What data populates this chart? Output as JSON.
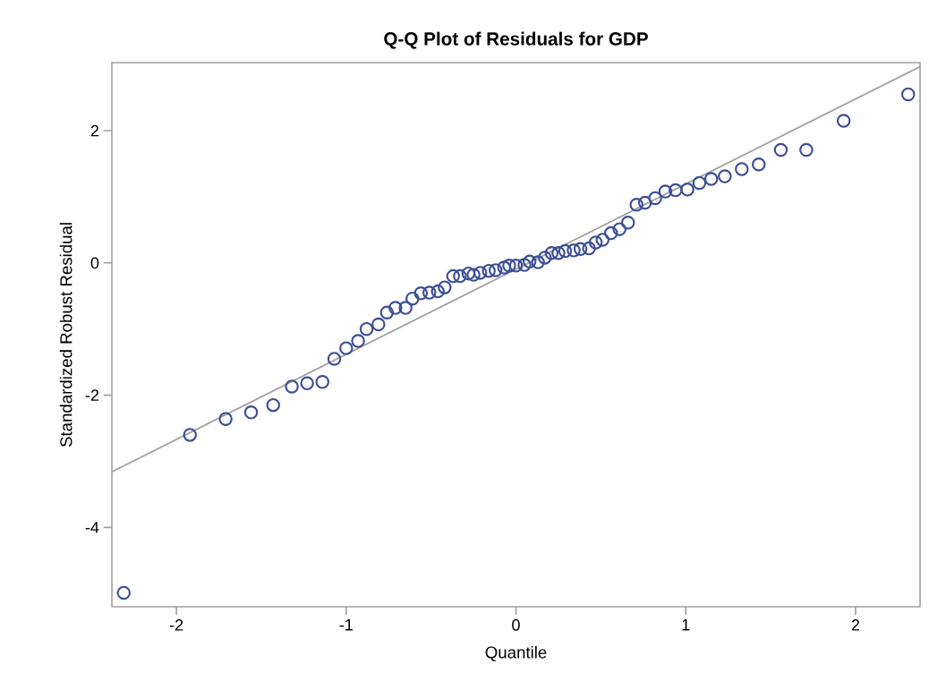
{
  "chart_data": {
    "type": "scatter",
    "title": "Q-Q Plot of Residuals for GDP",
    "xlabel": "Quantile",
    "ylabel": "Standardized Robust Residual",
    "xlim": [
      -2.38,
      2.38
    ],
    "ylim": [
      -5.2,
      3.03
    ],
    "xticks": [
      -2,
      -1,
      0,
      1,
      2
    ],
    "yticks": [
      -4,
      -2,
      0,
      2
    ],
    "series": [
      {
        "marker": "circle",
        "color": "#3c4e96",
        "x": [
          -2.31,
          -1.92,
          -1.71,
          -1.56,
          -1.43,
          -1.32,
          -1.23,
          -1.14,
          -1.07,
          -1.0,
          -0.93,
          -0.88,
          -0.81,
          -0.76,
          -0.71,
          -0.65,
          -0.61,
          -0.56,
          -0.51,
          -0.46,
          -0.42,
          -0.37,
          -0.33,
          -0.28,
          -0.25,
          -0.21,
          -0.16,
          -0.12,
          -0.07,
          -0.04,
          0.0,
          0.05,
          0.08,
          0.13,
          0.17,
          0.21,
          0.25,
          0.29,
          0.34,
          0.38,
          0.43,
          0.47,
          0.51,
          0.56,
          0.61,
          0.66,
          0.71,
          0.76,
          0.82,
          0.88,
          0.94,
          1.01,
          1.08,
          1.15,
          1.23,
          1.33,
          1.43,
          1.56,
          1.71,
          1.93,
          2.31
        ],
        "values": [
          -4.99,
          -2.6,
          -2.36,
          -2.26,
          -2.15,
          -1.87,
          -1.82,
          -1.8,
          -1.45,
          -1.29,
          -1.18,
          -1.0,
          -0.93,
          -0.75,
          -0.68,
          -0.68,
          -0.54,
          -0.46,
          -0.45,
          -0.43,
          -0.37,
          -0.2,
          -0.2,
          -0.16,
          -0.18,
          -0.15,
          -0.12,
          -0.11,
          -0.07,
          -0.04,
          -0.04,
          -0.03,
          0.02,
          0.01,
          0.08,
          0.15,
          0.15,
          0.18,
          0.19,
          0.21,
          0.22,
          0.31,
          0.35,
          0.45,
          0.51,
          0.61,
          0.88,
          0.91,
          0.98,
          1.08,
          1.1,
          1.11,
          1.21,
          1.27,
          1.31,
          1.42,
          1.49,
          1.71,
          1.71,
          2.15,
          2.55
        ]
      },
      {
        "type": "line",
        "marker": "none",
        "color": "#a0a0a0",
        "x": [
          -2.38,
          2.38
        ],
        "values": [
          -3.16,
          2.97
        ]
      }
    ]
  }
}
